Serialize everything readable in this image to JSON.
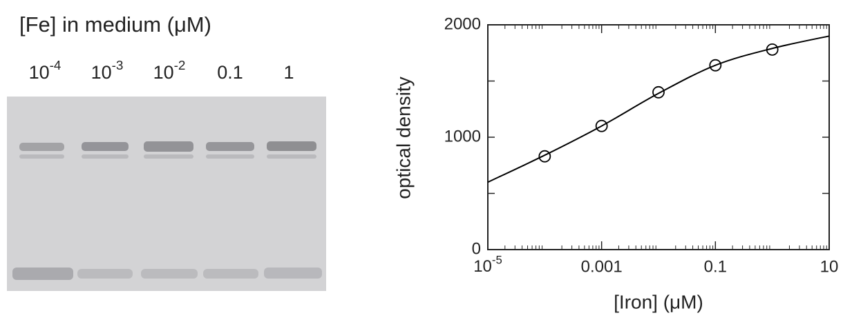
{
  "gel": {
    "title": "[Fe] in medium (μM)",
    "lanes": [
      {
        "base": "10",
        "sup": "-4"
      },
      {
        "base": "10",
        "sup": "-3"
      },
      {
        "base": "10",
        "sup": "-2"
      },
      {
        "base": "0.1"
      },
      {
        "base": "1"
      }
    ]
  },
  "chart_data": {
    "type": "scatter",
    "x_label": "[Iron] (μM)",
    "y_label": "optical density",
    "log_x": true,
    "xlim": [
      1e-05,
      10
    ],
    "ylim": [
      0,
      2000
    ],
    "xticks": [
      {
        "value": 1e-05,
        "label": {
          "base": "10",
          "sup": "-5"
        }
      },
      0.001,
      0.1,
      10
    ],
    "yticks": [
      0,
      1000,
      2000
    ],
    "minor_yticks": [
      500,
      1500
    ],
    "color": "#000000",
    "points": {
      "x": [
        0.0001,
        0.001,
        0.01,
        0.1,
        1
      ],
      "values": [
        830,
        1100,
        1400,
        1640,
        1780
      ]
    },
    "fit": {
      "x": [
        1e-05,
        0.0001,
        0.001,
        0.01,
        0.1,
        1,
        10
      ],
      "values": [
        600,
        840,
        1100,
        1390,
        1640,
        1790,
        1900
      ]
    }
  }
}
